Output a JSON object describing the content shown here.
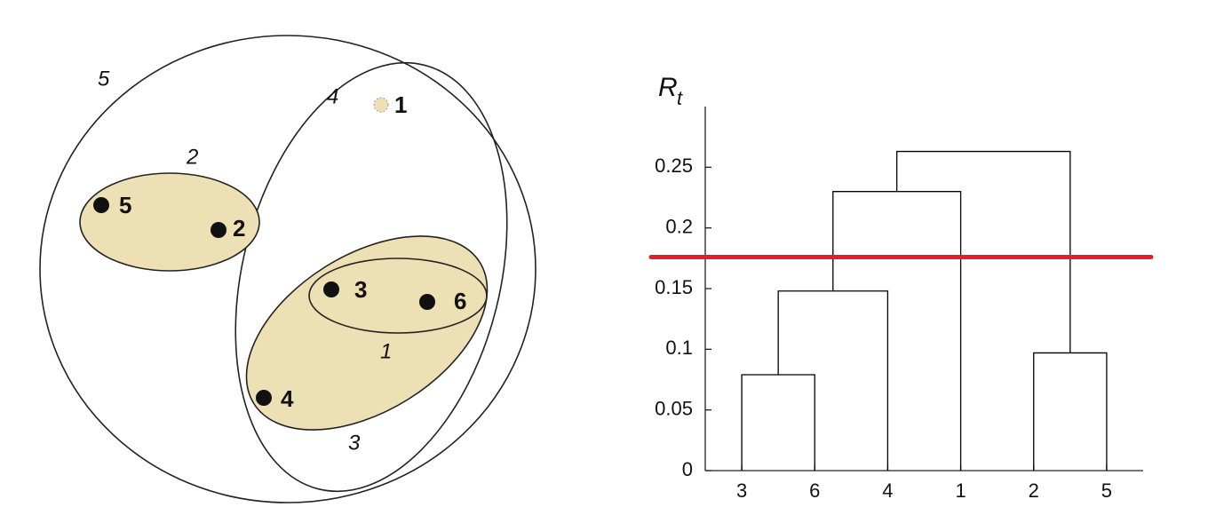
{
  "diagram": {
    "clusters": [
      {
        "label": "1"
      },
      {
        "label": "2"
      },
      {
        "label": "3"
      },
      {
        "label": "4"
      },
      {
        "label": "5"
      }
    ],
    "points": [
      {
        "label": "1"
      },
      {
        "label": "2"
      },
      {
        "label": "3"
      },
      {
        "label": "4"
      },
      {
        "label": "5"
      },
      {
        "label": "6"
      }
    ]
  },
  "chart_data": {
    "type": "dendrogram",
    "y_label": "R",
    "y_label_subscript": "t",
    "categories": [
      "3",
      "6",
      "4",
      "1",
      "2",
      "5"
    ],
    "merges": [
      {
        "children": [
          0,
          1
        ],
        "height": 0.079
      },
      {
        "children": [
          6,
          2
        ],
        "height": 0.148
      },
      {
        "children": [
          4,
          5
        ],
        "height": 0.097
      },
      {
        "children": [
          7,
          3
        ],
        "height": 0.23
      },
      {
        "children": [
          9,
          8
        ],
        "height": 0.263
      }
    ],
    "ylim": [
      0,
      0.3
    ],
    "yticks": [
      0,
      0.05,
      0.1,
      0.15,
      0.2,
      0.25
    ],
    "threshold": 0.176,
    "threshold_color": "#e0202a",
    "line_color": "#000000"
  }
}
